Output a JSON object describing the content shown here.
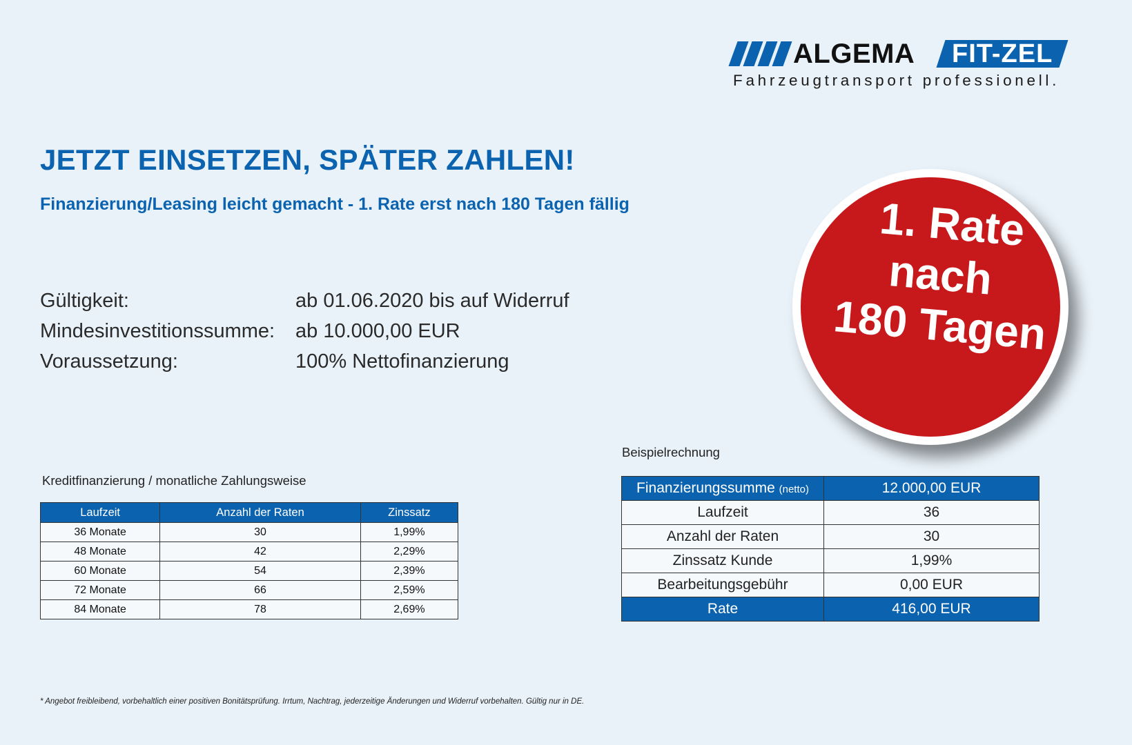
{
  "logo": {
    "brand1": "ALGEMA",
    "brand2": "FIT-ZEL",
    "slogan": "Fahrzeugtransport professionell."
  },
  "headline": "JETZT EINSETZEN, SPÄTER ZAHLEN!",
  "subline": "Finanzierung/Leasing leicht gemacht - 1. Rate erst nach 180 Tagen fällig",
  "info": [
    {
      "label": "Gültigkeit:",
      "value": "ab 01.06.2020 bis auf Widerruf"
    },
    {
      "label": "Mindesinvestitionssumme:",
      "value": "ab 10.000,00 EUR"
    },
    {
      "label": "Voraussetzung:",
      "value": "100% Nettofinanzierung"
    }
  ],
  "badge": {
    "line1": "1. Rate",
    "line2": "nach",
    "line3": "180 Tagen"
  },
  "credit_table": {
    "title": "Kreditfinanzierung / monatliche Zahlungsweise",
    "headers": [
      "Laufzeit",
      "Anzahl der Raten",
      "Zinssatz"
    ],
    "rows": [
      [
        "36 Monate",
        "30",
        "1,99%"
      ],
      [
        "48 Monate",
        "42",
        "2,29%"
      ],
      [
        "60 Monate",
        "54",
        "2,39%"
      ],
      [
        "72 Monate",
        "66",
        "2,59%"
      ],
      [
        "84 Monate",
        "78",
        "2,69%"
      ]
    ]
  },
  "example_table": {
    "title": "Beispielrechnung",
    "rows": [
      {
        "label": "Finanzierungssumme",
        "suffix": "(netto)",
        "value": "12.000,00 EUR"
      },
      {
        "label": "Laufzeit",
        "value": "36"
      },
      {
        "label": "Anzahl der Raten",
        "value": "30"
      },
      {
        "label": "Zinssatz Kunde",
        "value": "1,99%"
      },
      {
        "label": "Bearbeitungsgebühr",
        "value": "0,00 EUR"
      },
      {
        "label": "Rate",
        "value": "416,00 EUR"
      }
    ]
  },
  "footnote": "* Angebot freibleibend, vorbehaltlich einer positiven Bonitätsprüfung. Irrtum, Nachtrag, jederzeitige Änderungen und Widerruf vorbehalten. Gültig nur in DE.",
  "colors": {
    "brand_blue": "#0b63b0",
    "badge_red": "#c7191c",
    "background": "#e9f2f9"
  }
}
